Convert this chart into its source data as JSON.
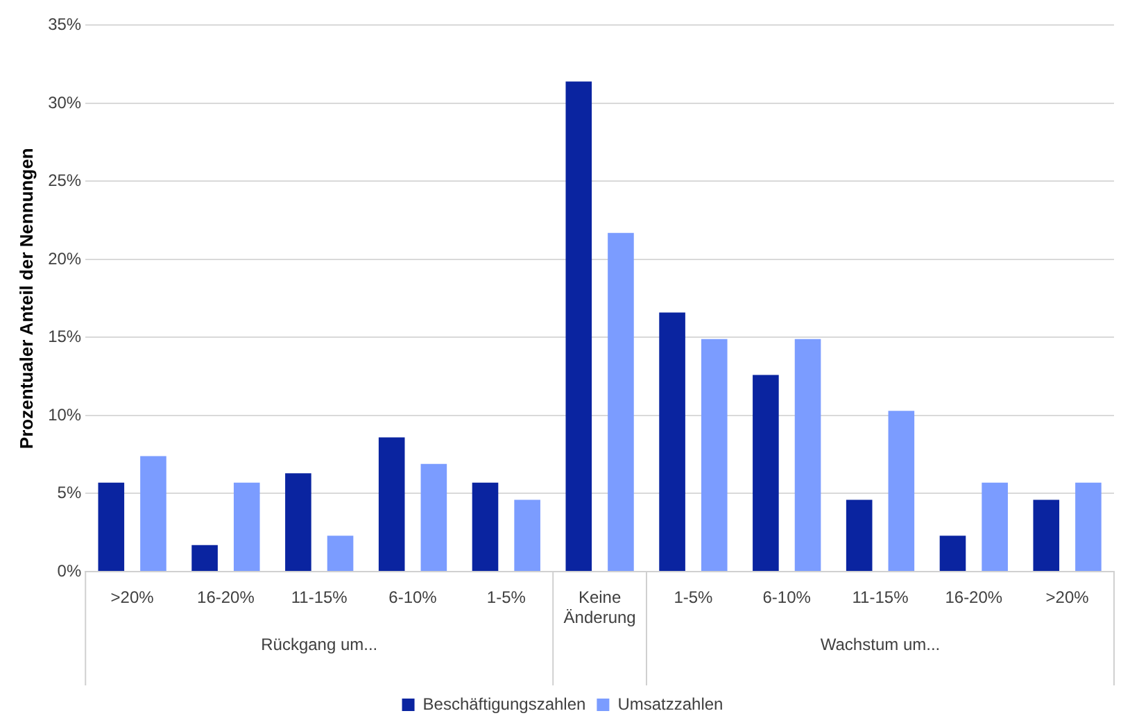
{
  "chart_data": {
    "type": "bar",
    "ylabel": "Prozentualer Anteil der Nennungen",
    "categories": [
      ">20%",
      "16-20%",
      "11-15%",
      "6-10%",
      "1-5%",
      "Keine Änderung",
      "1-5%",
      "6-10%",
      "11-15%",
      "16-20%",
      ">20%"
    ],
    "series": [
      {
        "name": "Beschäftigungszahlen",
        "color": "#0a24a0",
        "values": [
          5.7,
          1.7,
          6.3,
          8.6,
          5.7,
          31.4,
          16.6,
          12.6,
          4.6,
          2.3,
          4.6
        ]
      },
      {
        "name": "Umsatzzahlen",
        "color": "#7b9cff",
        "values": [
          7.4,
          5.7,
          2.3,
          6.9,
          4.6,
          21.7,
          14.9,
          14.9,
          10.3,
          5.7,
          5.7
        ]
      }
    ],
    "ylim": [
      0,
      35
    ],
    "yticks": [
      {
        "value": 0,
        "label": "0%"
      },
      {
        "value": 5,
        "label": "5%"
      },
      {
        "value": 10,
        "label": "10%"
      },
      {
        "value": 15,
        "label": "15%"
      },
      {
        "value": 20,
        "label": "20%"
      },
      {
        "value": 25,
        "label": "25%"
      },
      {
        "value": 30,
        "label": "30%"
      },
      {
        "value": 35,
        "label": "35%"
      }
    ],
    "grid": "y",
    "legend": "bottom",
    "annotations": [
      "Rückgang um...",
      "Wachstum um..."
    ]
  }
}
